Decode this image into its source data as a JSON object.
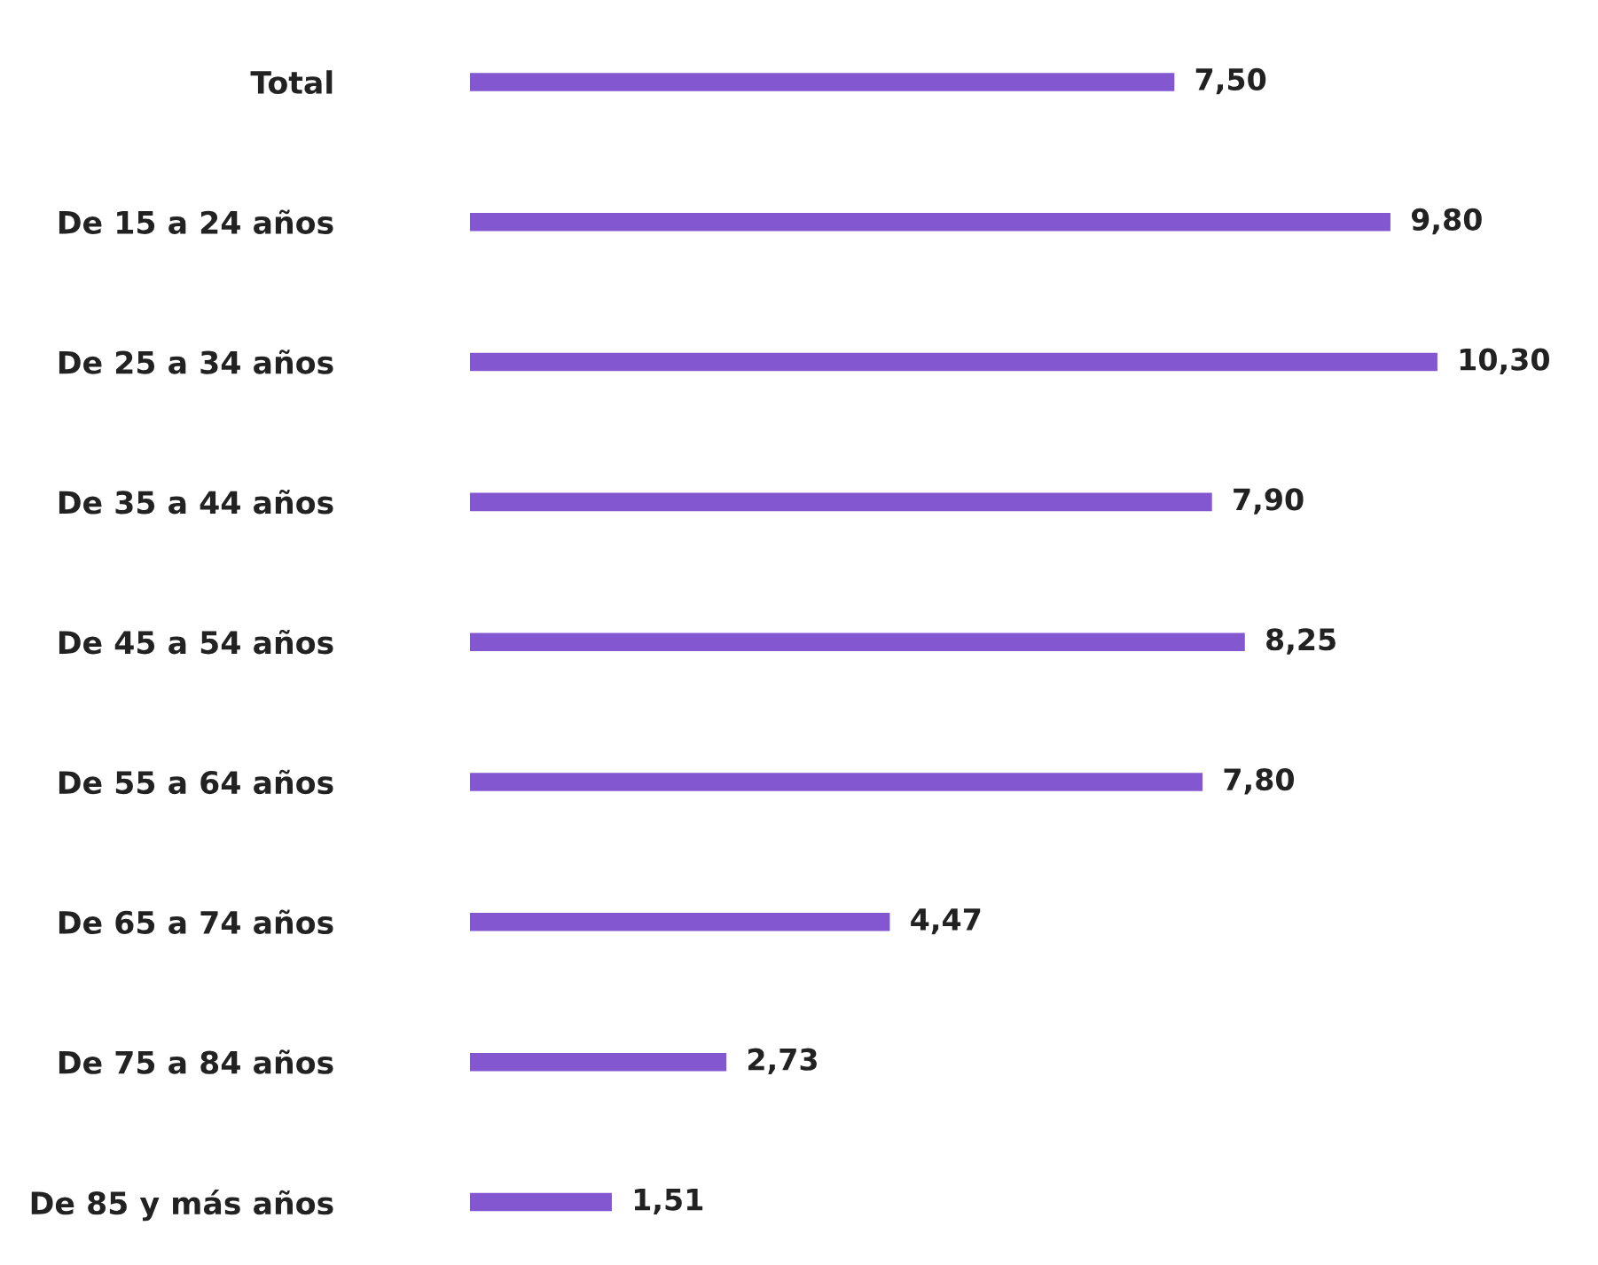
{
  "chart_data": {
    "type": "bar",
    "orientation": "horizontal",
    "categories": [
      "Total",
      "De 15 a 24 años",
      "De 25 a 34 años",
      "De 35 a 44 años",
      "De 45 a 54 años",
      "De 55 a 64 años",
      "De 65 a 74 años",
      "De 75 a 84 años",
      "De 85 y más años"
    ],
    "values": [
      7.5,
      9.8,
      10.3,
      7.9,
      8.25,
      7.8,
      4.47,
      2.73,
      1.51
    ],
    "value_labels": [
      "7,50",
      "9,80",
      "10,30",
      "7,90",
      "8,25",
      "7,80",
      "4,47",
      "2,73",
      "1,51"
    ],
    "color": "#8257d0",
    "grid": false,
    "legend": false
  }
}
